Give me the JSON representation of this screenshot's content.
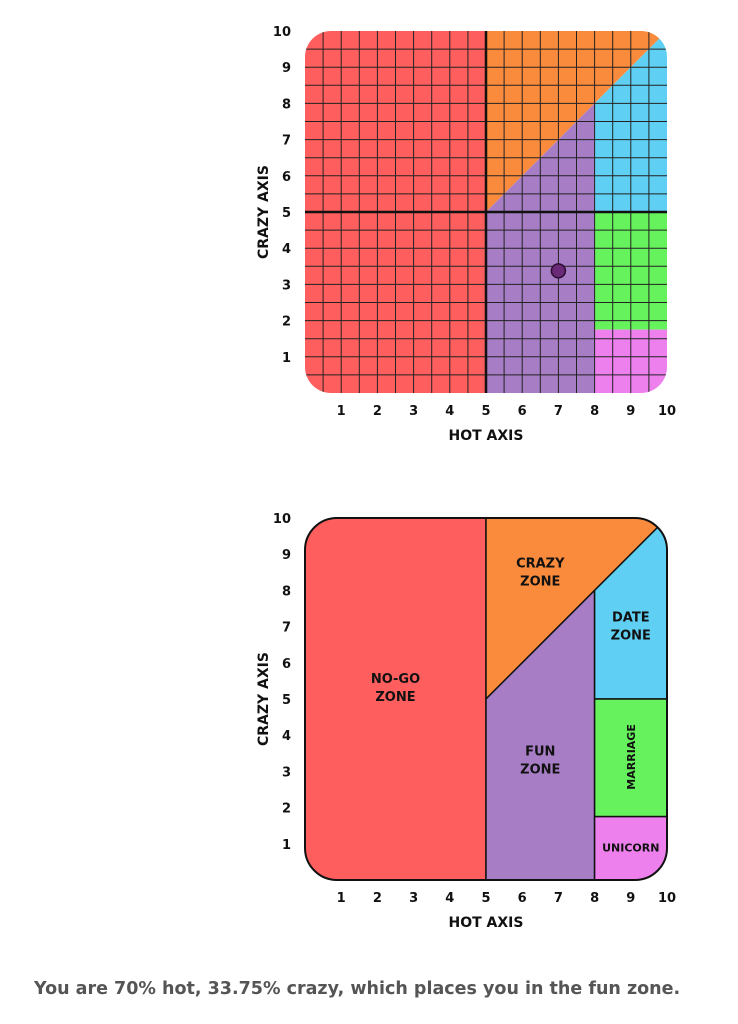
{
  "colors": {
    "no_go": "#ff5e5e",
    "crazy": "#fa8b3c",
    "fun": "#a77dc6",
    "date": "#5fd0f3",
    "marriage": "#66f25c",
    "unicorn": "#ee80ee",
    "grid": "#222222",
    "marker": "#6b2a78"
  },
  "result_text": "You are 70% hot, 33.75% crazy, which places you in the fun zone.",
  "chart_data": [
    {
      "type": "scatter",
      "xlabel": "HOT AXIS",
      "ylabel": "CRAZY AXIS",
      "xlim": [
        0,
        10
      ],
      "ylim": [
        0,
        10
      ],
      "x_ticks": [
        "1",
        "2",
        "3",
        "4",
        "5",
        "6",
        "7",
        "8",
        "9",
        "10"
      ],
      "y_ticks": [
        "1",
        "2",
        "3",
        "4",
        "5",
        "6",
        "7",
        "8",
        "9",
        "10"
      ],
      "grid": true,
      "grid_step": 0.5,
      "point": {
        "x": 7,
        "y": 3.375
      },
      "quadrant_lines": {
        "x": 5,
        "y": 5
      }
    },
    {
      "type": "area",
      "xlabel": "HOT AXIS",
      "ylabel": "CRAZY AXIS",
      "xlim": [
        0,
        10
      ],
      "ylim": [
        0,
        10
      ],
      "x_ticks": [
        "1",
        "2",
        "3",
        "4",
        "5",
        "6",
        "7",
        "8",
        "9",
        "10"
      ],
      "y_ticks": [
        "1",
        "2",
        "3",
        "4",
        "5",
        "6",
        "7",
        "8",
        "9",
        "10"
      ],
      "grid": false,
      "zones": [
        {
          "id": "no_go",
          "label": [
            "NO-GO",
            "ZONE"
          ],
          "color_key": "no_go",
          "polygon": [
            [
              0,
              0
            ],
            [
              5,
              0
            ],
            [
              5,
              10
            ],
            [
              0,
              10
            ]
          ],
          "label_at": [
            2.5,
            5.3
          ]
        },
        {
          "id": "crazy",
          "label": [
            "CRAZY",
            "ZONE"
          ],
          "color_key": "crazy",
          "polygon": [
            [
              5,
              5
            ],
            [
              5,
              10
            ],
            [
              10,
              10
            ]
          ],
          "label_at": [
            6.5,
            8.5
          ]
        },
        {
          "id": "fun",
          "label": [
            "FUN",
            "ZONE"
          ],
          "color_key": "fun",
          "polygon": [
            [
              5,
              0
            ],
            [
              8,
              0
            ],
            [
              8,
              8
            ],
            [
              5,
              5
            ]
          ],
          "label_at": [
            6.5,
            3.3
          ]
        },
        {
          "id": "date",
          "label": [
            "DATE",
            "ZONE"
          ],
          "color_key": "date",
          "polygon": [
            [
              8,
              5
            ],
            [
              10,
              5
            ],
            [
              10,
              10
            ],
            [
              8,
              8
            ]
          ],
          "label_at": [
            9,
            7
          ]
        },
        {
          "id": "marriage",
          "label": [
            "MARRIAGE"
          ],
          "color_key": "marriage",
          "polygon": [
            [
              8,
              1.75
            ],
            [
              10,
              1.75
            ],
            [
              10,
              5
            ],
            [
              8,
              5
            ]
          ],
          "label_at": [
            9,
            3.4
          ],
          "rotate": -90
        },
        {
          "id": "unicorn",
          "label": [
            "UNICORN"
          ],
          "color_key": "unicorn",
          "polygon": [
            [
              8,
              0
            ],
            [
              10,
              0
            ],
            [
              10,
              1.75
            ],
            [
              8,
              1.75
            ]
          ],
          "label_at": [
            9,
            0.9
          ]
        }
      ]
    }
  ]
}
